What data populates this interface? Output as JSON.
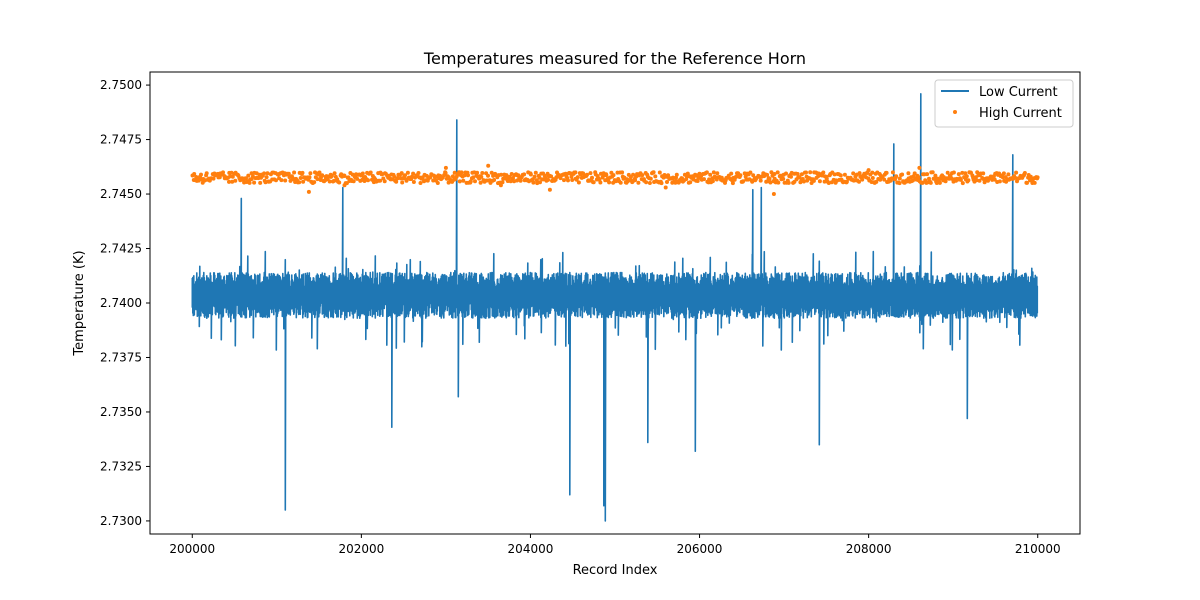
{
  "chart_data": {
    "type": "line",
    "title": "Temperatures measured for the Reference Horn",
    "xlabel": "Record Index",
    "ylabel": "Temperature (K)",
    "xlim": [
      199500,
      210500
    ],
    "ylim": [
      2.7294,
      2.7506
    ],
    "x_ticks": [
      200000,
      202000,
      204000,
      206000,
      208000,
      210000
    ],
    "x_tick_labels": [
      "200000",
      "202000",
      "204000",
      "206000",
      "208000",
      "210000"
    ],
    "y_ticks": [
      2.73,
      2.7325,
      2.735,
      2.7375,
      2.74,
      2.7425,
      2.745,
      2.7475,
      2.75
    ],
    "y_tick_labels": [
      "2.7300",
      "2.7325",
      "2.7350",
      "2.7375",
      "2.7400",
      "2.7425",
      "2.7450",
      "2.7475",
      "2.7500"
    ],
    "grid": false,
    "legend_position": "top-right",
    "series": [
      {
        "name": "Low Current",
        "style": "line",
        "color": "#1f77b4",
        "x_range": [
          200000,
          210000
        ],
        "band": [
          2.7393,
          2.7414
        ],
        "notable_points": [
          {
            "x": 200580,
            "y": 2.7448
          },
          {
            "x": 201100,
            "y": 2.7305
          },
          {
            "x": 201780,
            "y": 2.7453
          },
          {
            "x": 202360,
            "y": 2.7343
          },
          {
            "x": 203130,
            "y": 2.7484
          },
          {
            "x": 203150,
            "y": 2.7357
          },
          {
            "x": 204470,
            "y": 2.7312
          },
          {
            "x": 204870,
            "y": 2.7307
          },
          {
            "x": 204890,
            "y": 2.73
          },
          {
            "x": 205390,
            "y": 2.7336
          },
          {
            "x": 205950,
            "y": 2.7332
          },
          {
            "x": 206630,
            "y": 2.7452
          },
          {
            "x": 206730,
            "y": 2.7453
          },
          {
            "x": 207420,
            "y": 2.7335
          },
          {
            "x": 208300,
            "y": 2.7473
          },
          {
            "x": 208620,
            "y": 2.7496
          },
          {
            "x": 209170,
            "y": 2.7347
          },
          {
            "x": 209710,
            "y": 2.7468
          }
        ]
      },
      {
        "name": "High Current",
        "style": "scatter",
        "color": "#ff7f0e",
        "x_range": [
          200000,
          210000
        ],
        "band": [
          2.7455,
          2.746
        ],
        "notable_points": [
          {
            "x": 201380,
            "y": 2.7451
          },
          {
            "x": 201800,
            "y": 2.7454
          },
          {
            "x": 203000,
            "y": 2.7462
          },
          {
            "x": 203500,
            "y": 2.7463
          },
          {
            "x": 203650,
            "y": 2.7454
          },
          {
            "x": 204230,
            "y": 2.7452
          },
          {
            "x": 205600,
            "y": 2.7453
          },
          {
            "x": 206880,
            "y": 2.745
          },
          {
            "x": 208000,
            "y": 2.7461
          },
          {
            "x": 208600,
            "y": 2.7462
          }
        ]
      }
    ]
  }
}
